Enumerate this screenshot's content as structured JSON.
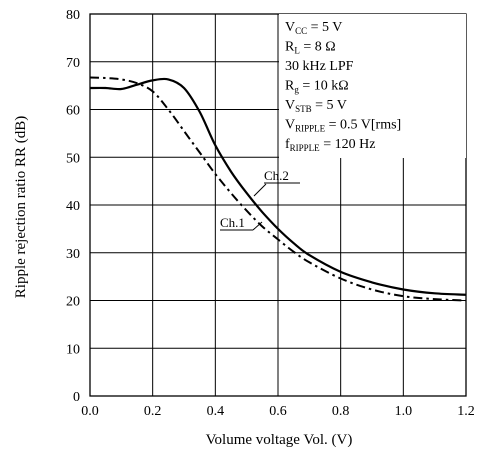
{
  "chart_data": {
    "type": "line",
    "xlabel": "Volume voltage  Vol.  (V)",
    "ylabel": "Ripple rejection ratio  RR  (dB)",
    "xlim": [
      0,
      1.2
    ],
    "ylim": [
      0,
      80
    ],
    "x_ticks": [
      0.0,
      0.2,
      0.4,
      0.6,
      0.8,
      1.0,
      1.2
    ],
    "x_tick_labels": [
      "0.0",
      "0.2",
      "0.4",
      "0.6",
      "0.8",
      "1.0",
      "1.2"
    ],
    "y_ticks": [
      0,
      10,
      20,
      30,
      40,
      50,
      60,
      70,
      80
    ],
    "y_tick_labels": [
      "0",
      "10",
      "20",
      "30",
      "40",
      "50",
      "60",
      "70",
      "80"
    ],
    "grid": true,
    "series": [
      {
        "name": "Ch.2",
        "style": "solid",
        "x": [
          0.0,
          0.05,
          0.1,
          0.15,
          0.2,
          0.25,
          0.3,
          0.35,
          0.4,
          0.45,
          0.5,
          0.55,
          0.6,
          0.65,
          0.7,
          0.8,
          0.9,
          1.0,
          1.1,
          1.2
        ],
        "y": [
          64.5,
          64.5,
          64.3,
          65.2,
          66.1,
          66.3,
          64.5,
          59.5,
          52.5,
          47.0,
          42.5,
          38.5,
          35.0,
          32.0,
          29.5,
          26.0,
          23.8,
          22.3,
          21.5,
          21.2
        ]
      },
      {
        "name": "Ch.1",
        "style": "dash-dot",
        "x": [
          0.0,
          0.05,
          0.1,
          0.15,
          0.2,
          0.25,
          0.3,
          0.35,
          0.4,
          0.45,
          0.5,
          0.55,
          0.6,
          0.65,
          0.7,
          0.8,
          0.9,
          1.0,
          1.1,
          1.2
        ],
        "y": [
          66.7,
          66.6,
          66.3,
          65.5,
          63.8,
          60.0,
          55.5,
          51.0,
          46.5,
          42.5,
          38.8,
          35.5,
          32.8,
          30.2,
          28.0,
          24.6,
          22.3,
          20.9,
          20.3,
          20.0
        ]
      }
    ],
    "labels": {
      "ch2": "Ch.2",
      "ch1": "Ch.1"
    },
    "conditions": {
      "vcc": {
        "main": "V",
        "sub": "CC",
        "rest": " = 5 V"
      },
      "rl": {
        "main": "R",
        "sub": "L",
        "rest": " = 8 Ω"
      },
      "lpf": {
        "main": "30 kHz LPF",
        "sub": "",
        "rest": ""
      },
      "rg": {
        "main": "R",
        "sub": "g",
        "rest": " = 10 kΩ"
      },
      "vstb": {
        "main": "V",
        "sub": "STB",
        "rest": " = 5 V"
      },
      "vripple": {
        "main": "V",
        "sub": "RIPPLE",
        "rest": " = 0.5 V[rms]"
      },
      "fripple": {
        "main": "f",
        "sub": "RIPPLE",
        "rest": " = 120 Hz"
      }
    }
  }
}
